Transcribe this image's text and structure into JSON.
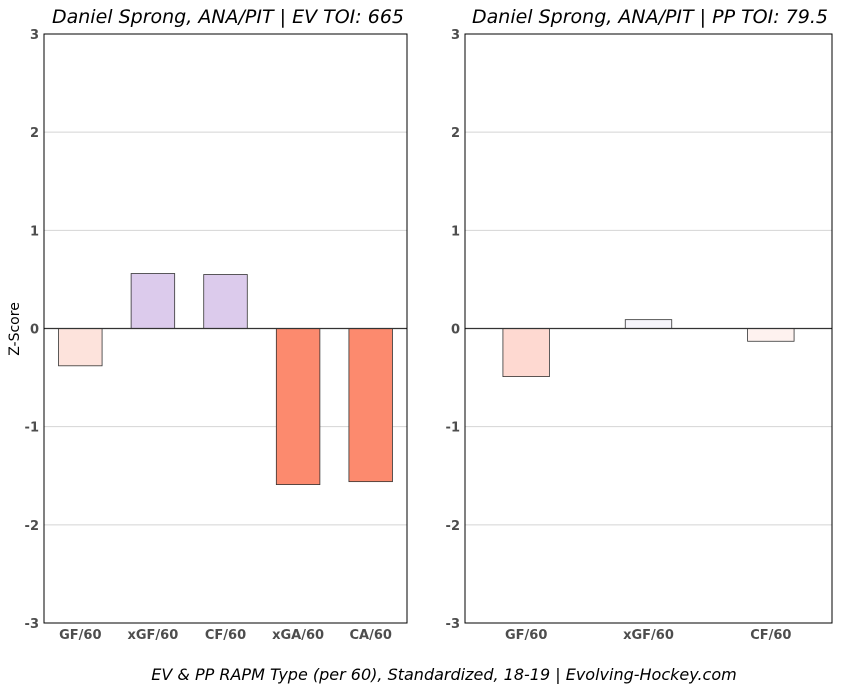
{
  "caption": "EV & PP RAPM Type (per 60), Standardized, 18-19    |    Evolving-Hockey.com",
  "chart_data": [
    {
      "type": "bar",
      "title": "Daniel Sprong, ANA/PIT  |  EV TOI: 665",
      "ylabel": "Z-Score",
      "xlabel": "",
      "ylim": [
        -3,
        3
      ],
      "yticks": [
        3,
        2,
        1,
        0,
        -1,
        -2,
        -3
      ],
      "grid": true,
      "categories": [
        "GF/60",
        "xGF/60",
        "CF/60",
        "xGA/60",
        "CA/60"
      ],
      "values": [
        -0.38,
        0.56,
        0.55,
        -1.59,
        -1.56
      ],
      "colors": [
        "#fde3dc",
        "#dccbec",
        "#dccbec",
        "#fc8a6e",
        "#fc8a6e"
      ]
    },
    {
      "type": "bar",
      "title": "Daniel Sprong, ANA/PIT  |  PP TOI: 79.5",
      "ylabel": "",
      "xlabel": "",
      "ylim": [
        -3,
        3
      ],
      "yticks": [
        3,
        2,
        1,
        0,
        -1,
        -2,
        -3
      ],
      "grid": true,
      "categories": [
        "GF/60",
        "xGF/60",
        "CF/60"
      ],
      "values": [
        -0.49,
        0.09,
        -0.13
      ],
      "colors": [
        "#fed9d1",
        "#f6f5fb",
        "#fef2ef"
      ]
    }
  ]
}
